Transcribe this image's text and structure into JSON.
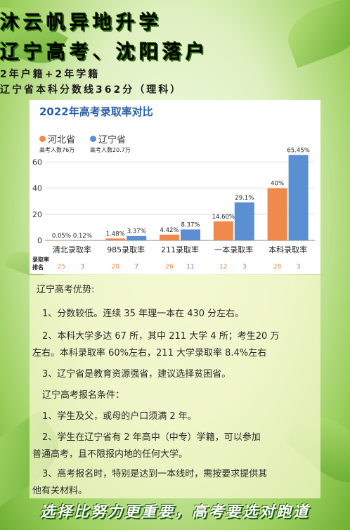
{
  "header": {
    "line1": "沐云帆异地升学",
    "line2": "辽宁高考、沈阳落户",
    "line3": "2年户籍+2年学籍",
    "line4": "辽宁省本科分数线362分（理科）"
  },
  "chart_data": {
    "type": "bar",
    "title": "2022年高考录取率对比",
    "categories": [
      "清北录取率",
      "985录取率",
      "211录取率",
      "一本录取率",
      "本科录取率"
    ],
    "series": [
      {
        "name": "河北省",
        "sub": "高考人数76万",
        "color": "#ef8a4a",
        "values": [
          0.05,
          1.48,
          4.42,
          14.6,
          40
        ],
        "labels": [
          "0.05%",
          "1.48%",
          "4.42%",
          "14.60%",
          "40%"
        ],
        "ranks": [
          "25",
          "20",
          "26",
          "12",
          "28"
        ]
      },
      {
        "name": "辽宁省",
        "sub": "高考人数20.7万",
        "color": "#5b8fd1",
        "values": [
          0.12,
          3.37,
          8.37,
          29.1,
          65.45
        ],
        "labels": [
          "0.12%",
          "3.37%",
          "8.37%",
          "29.1%",
          "65.45%"
        ],
        "ranks": [
          "3",
          "7",
          "11",
          "3",
          "3"
        ]
      }
    ],
    "yticks": [
      "0",
      "20",
      "40",
      "60"
    ],
    "ylim": [
      0,
      70
    ],
    "rank_label_1": "录取率",
    "rank_label_2": "排名"
  },
  "content": {
    "p1": "辽宁高考优势:",
    "p2": "1、分数较低。连续 35 年理一本在 430 分左右。",
    "p3": "2、本科大学多达 67 所，其中 211 大学 4 所；考生20 万",
    "p4": "左右。本科录取率 60%左右，211 大学录取率 8.4%左右",
    "p5": "3、辽宁省是教育资源强省，建议选择贫困省。",
    "p6": "辽宁高考报名条件：",
    "p7": "1、学生及父，或母的户口须满 2 年。",
    "p8": "2、学生在辽宁省有 2 年高中（中专）学籍，可以参加",
    "p9": "普通高考，且不限报内地的任何大学。",
    "p10": "3、高考报名时，特别是达到一本线时，需按要求提供其",
    "p11": "他有关材料。"
  },
  "footer": "选择比努力更重要，高考要选对跑道"
}
